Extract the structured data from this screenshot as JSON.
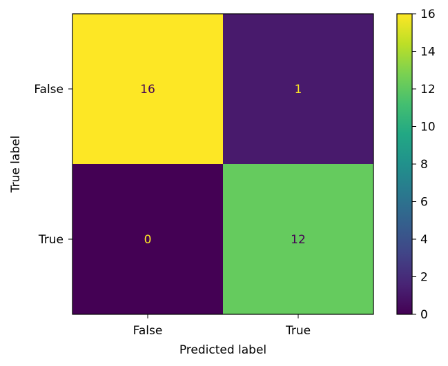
{
  "chart_data": {
    "type": "heatmap",
    "title": "",
    "xlabel": "Predicted label",
    "ylabel": "True label",
    "x_categories": [
      "False",
      "True"
    ],
    "y_categories": [
      "False",
      "True"
    ],
    "values": [
      [
        16,
        1
      ],
      [
        0,
        12
      ]
    ],
    "cell_labels": [
      [
        "16",
        "1"
      ],
      [
        "0",
        "12"
      ]
    ],
    "colorbar": {
      "min": 0,
      "max": 16,
      "ticks": [
        0,
        2,
        4,
        6,
        8,
        10,
        12,
        14,
        16
      ],
      "tick_labels": [
        "0",
        "2",
        "4",
        "6",
        "8",
        "10",
        "12",
        "14",
        "16"
      ],
      "colormap": "viridis"
    },
    "colors": {
      "cell_0_0": "#fde725",
      "cell_0_1": "#481a6c",
      "cell_1_0": "#440154",
      "cell_1_1": "#65cb5e",
      "text_dark": "#440154",
      "text_light": "#fde725"
    }
  }
}
